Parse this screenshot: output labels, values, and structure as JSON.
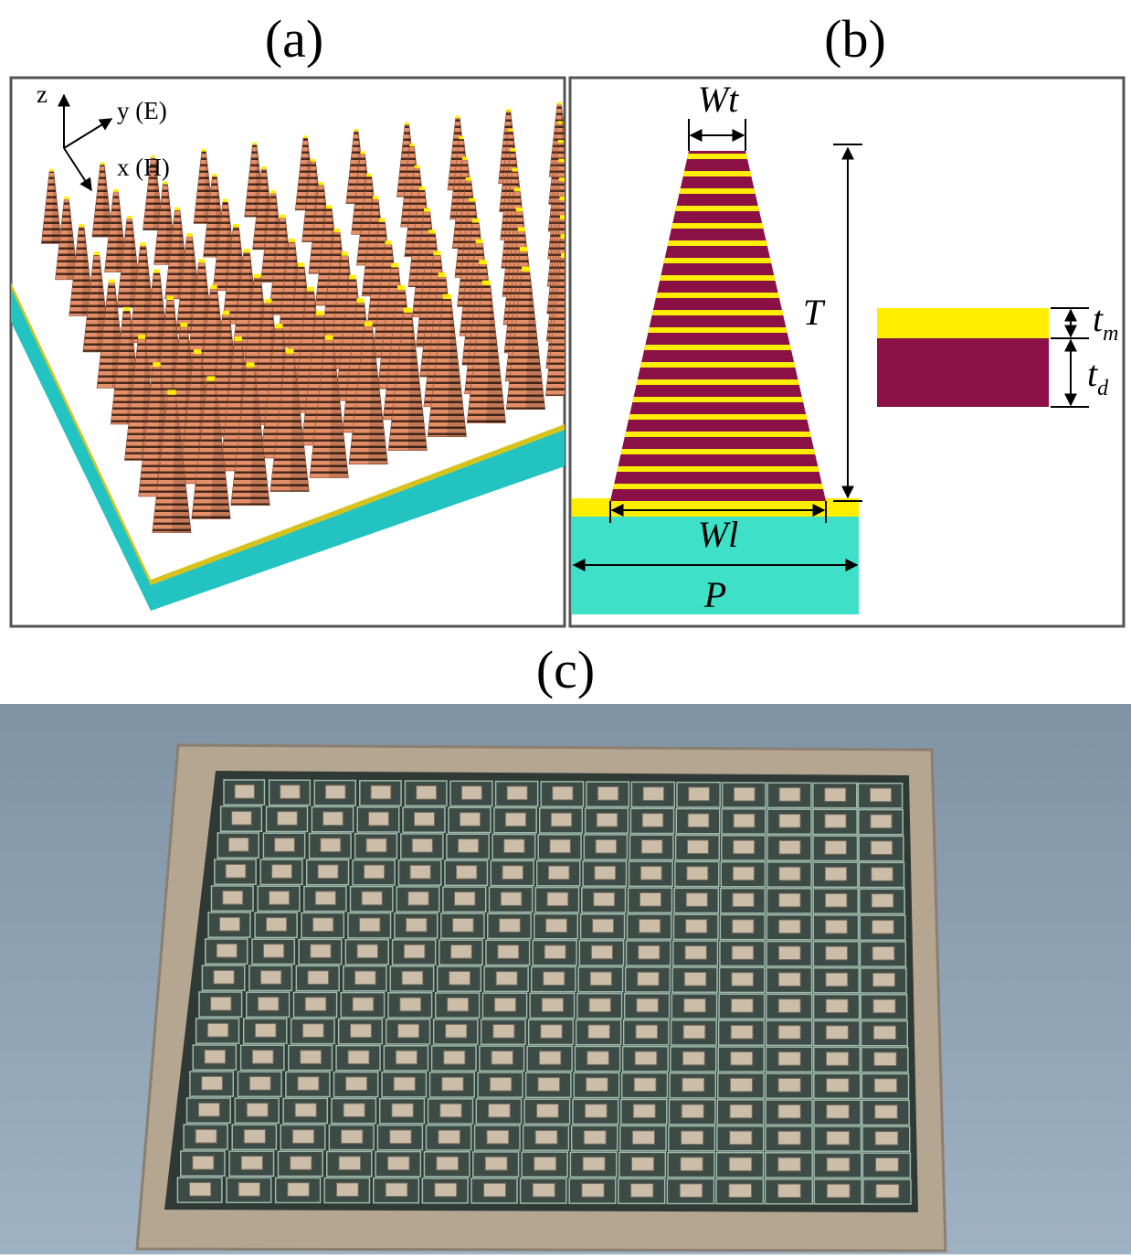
{
  "panel_a": {
    "label": "(a)",
    "axis_z": "z",
    "axis_y": "y (E)",
    "axis_x": "x (H)"
  },
  "panel_b": {
    "label": "(b)",
    "top_width": "Wt",
    "height": "T",
    "metal_thickness": {
      "symbol": "t",
      "subscript": "m"
    },
    "dielectric_thickness": {
      "symbol": "t",
      "subscript": "d"
    },
    "bottom_width": "Wl",
    "period": "P"
  },
  "panel_c": {
    "label": "(c)"
  }
}
